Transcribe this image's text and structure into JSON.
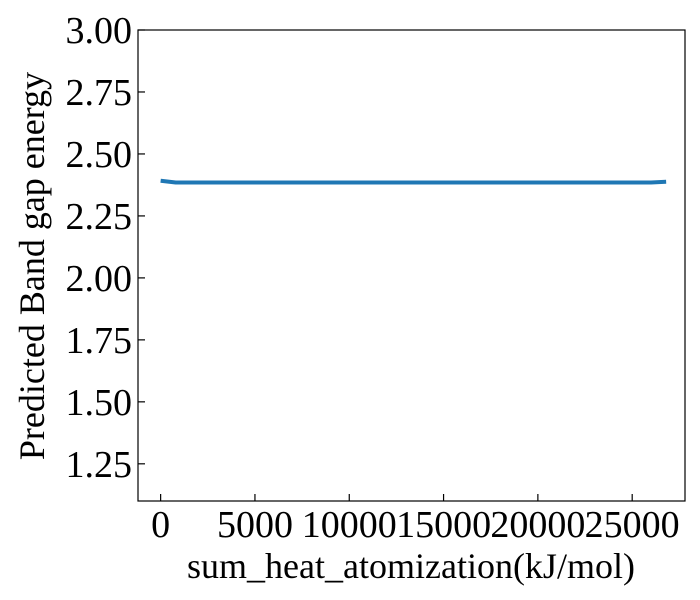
{
  "chart_data": {
    "type": "line",
    "title": "",
    "xlabel": "sum_heat_atomization(kJ/mol)",
    "ylabel": "Predicted Band gap energy",
    "xlim": [
      -1200,
      27800
    ],
    "ylim": [
      1.1,
      3.0
    ],
    "xticks": [
      0,
      5000,
      10000,
      15000,
      20000,
      25000
    ],
    "xtick_labels": [
      "0",
      "5000",
      "10000",
      "15000",
      "20000",
      "25000"
    ],
    "yticks": [
      1.25,
      1.5,
      1.75,
      2.0,
      2.25,
      2.5,
      2.75,
      3.0
    ],
    "ytick_labels": [
      "1.25",
      "1.50",
      "1.75",
      "2.00",
      "2.25",
      "2.50",
      "2.75",
      "3.00"
    ],
    "grid": false,
    "series": [
      {
        "name": "Predicted Band gap energy",
        "color": "#1f77b4",
        "x": [
          0,
          800,
          2000,
          5000,
          10000,
          15000,
          20000,
          25000,
          26000,
          26800
        ],
        "y": [
          2.392,
          2.385,
          2.385,
          2.385,
          2.385,
          2.385,
          2.385,
          2.385,
          2.385,
          2.388
        ]
      }
    ]
  }
}
